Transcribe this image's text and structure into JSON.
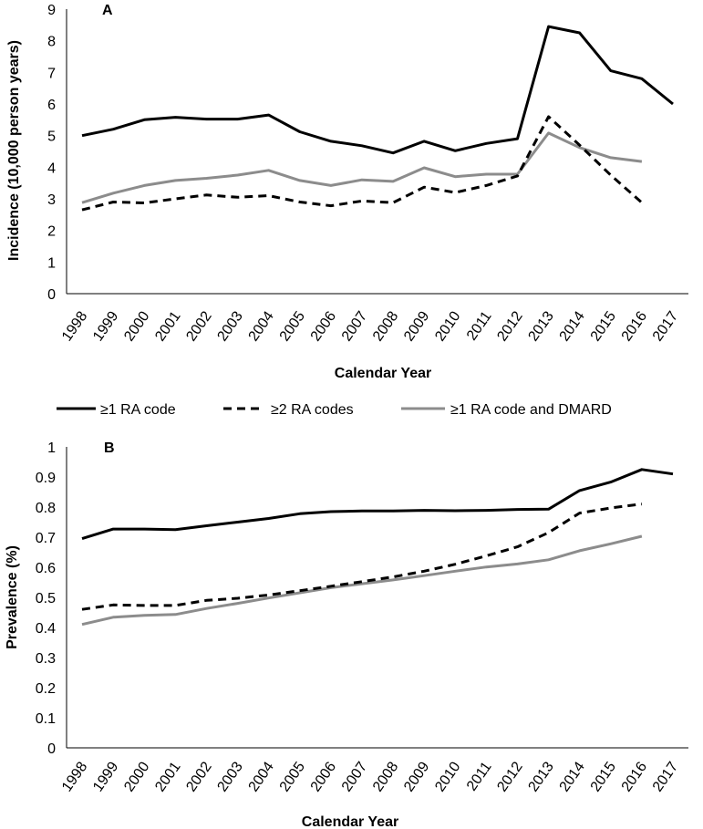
{
  "legend": {
    "items": [
      {
        "label": "≥1 RA code",
        "color": "#000000",
        "dash": "solid"
      },
      {
        "label": "≥2 RA codes",
        "color": "#000000",
        "dash": "dashed"
      },
      {
        "label": "≥1 RA code and DMARD",
        "color": "#8c8c8c",
        "dash": "solid"
      }
    ]
  },
  "chart_data": [
    {
      "type": "line",
      "panel_label": "A",
      "title": "",
      "xlabel": "Calendar Year",
      "ylabel": "Incidence (10,000 person years)",
      "ylim": [
        0,
        9
      ],
      "yticks": [
        "0",
        "1",
        "2",
        "3",
        "4",
        "5",
        "6",
        "7",
        "8",
        "9"
      ],
      "categories": [
        "1998",
        "1999",
        "2000",
        "2001",
        "2002",
        "2003",
        "2004",
        "2005",
        "2006",
        "2007",
        "2008",
        "2009",
        "2010",
        "2011",
        "2012",
        "2013",
        "2014",
        "2015",
        "2016",
        "2017"
      ],
      "grid": false,
      "series": [
        {
          "name": "≥1 RA code",
          "values": [
            5.0,
            5.2,
            5.5,
            5.58,
            5.52,
            5.52,
            5.65,
            5.12,
            4.82,
            4.68,
            4.45,
            4.82,
            4.52,
            4.75,
            4.9,
            8.45,
            8.25,
            7.05,
            6.8,
            6.0
          ]
        },
        {
          "name": "≥2 RA codes",
          "values": [
            2.65,
            2.9,
            2.87,
            3.0,
            3.12,
            3.05,
            3.1,
            2.9,
            2.78,
            2.93,
            2.88,
            3.37,
            3.2,
            3.42,
            3.72,
            5.6,
            4.7,
            3.75,
            2.88,
            null
          ]
        },
        {
          "name": "≥1 RA code and DMARD",
          "values": [
            2.88,
            3.18,
            3.42,
            3.58,
            3.65,
            3.75,
            3.9,
            3.58,
            3.42,
            3.6,
            3.55,
            3.98,
            3.7,
            3.78,
            3.78,
            5.08,
            4.62,
            4.3,
            4.18,
            null
          ]
        }
      ]
    },
    {
      "type": "line",
      "panel_label": "B",
      "title": "",
      "xlabel": "Calendar Year",
      "ylabel": "Prevalence (%)",
      "ylim": [
        0,
        1
      ],
      "yticks": [
        "0",
        "0.1",
        "0.2",
        "0.3",
        "0.4",
        "0.5",
        "0.6",
        "0.7",
        "0.8",
        "0.9",
        "1"
      ],
      "categories": [
        "1998",
        "1999",
        "2000",
        "2001",
        "2002",
        "2003",
        "2004",
        "2005",
        "2006",
        "2007",
        "2008",
        "2009",
        "2010",
        "2011",
        "2012",
        "2013",
        "2014",
        "2015",
        "2016",
        "2017"
      ],
      "grid": false,
      "series": [
        {
          "name": "≥1 RA code",
          "values": [
            0.695,
            0.727,
            0.727,
            0.725,
            0.738,
            0.75,
            0.762,
            0.778,
            0.785,
            0.787,
            0.787,
            0.789,
            0.788,
            0.789,
            0.792,
            0.793,
            0.855,
            0.883,
            0.925,
            0.91
          ]
        },
        {
          "name": "≥2 RA codes",
          "values": [
            0.46,
            0.475,
            0.473,
            0.473,
            0.49,
            0.497,
            0.508,
            0.522,
            0.537,
            0.552,
            0.568,
            0.587,
            0.61,
            0.638,
            0.668,
            0.715,
            0.78,
            0.797,
            0.81,
            null
          ]
        },
        {
          "name": "≥1 RA code and DMARD",
          "values": [
            0.41,
            0.434,
            0.44,
            0.443,
            0.463,
            0.48,
            0.498,
            0.515,
            0.532,
            0.545,
            0.558,
            0.572,
            0.587,
            0.601,
            0.611,
            0.625,
            0.655,
            0.678,
            0.703,
            null
          ]
        }
      ]
    }
  ]
}
